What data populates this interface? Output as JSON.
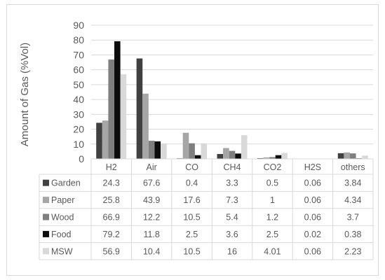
{
  "chart_data": {
    "type": "bar",
    "ylabel": "Amount of Gas (%Vol)",
    "ylim": [
      0,
      90
    ],
    "yticks": [
      0,
      10,
      20,
      30,
      40,
      50,
      60,
      70,
      80,
      90
    ],
    "grid": true,
    "legend": "data-table",
    "categories": [
      "H2",
      "Air",
      "CO",
      "CH4",
      "CO2",
      "H2S",
      "others"
    ],
    "series": [
      {
        "name": "Garden",
        "color": "#404040",
        "values": [
          24.3,
          67.6,
          0.4,
          3.3,
          0.5,
          0.06,
          3.84
        ],
        "labels": [
          "24.3",
          "67.6",
          "0.4",
          "3.3",
          "0.5",
          "0.06",
          "3.84"
        ]
      },
      {
        "name": "Paper",
        "color": "#a6a6a6",
        "values": [
          25.8,
          43.9,
          17.6,
          7.3,
          1,
          0.06,
          4.34
        ],
        "labels": [
          "25.8",
          "43.9",
          "17.6",
          "7.3",
          "1",
          "0.06",
          "4.34"
        ]
      },
      {
        "name": "Wood",
        "color": "#7f7f7f",
        "values": [
          66.9,
          12.2,
          10.5,
          5.4,
          1.2,
          0.06,
          3.7
        ],
        "labels": [
          "66.9",
          "12.2",
          "10.5",
          "5.4",
          "1.2",
          "0.06",
          "3.7"
        ]
      },
      {
        "name": "Food",
        "color": "#0d0d0d",
        "values": [
          79.2,
          11.8,
          2.5,
          3.6,
          2.5,
          0.02,
          0.38
        ],
        "labels": [
          "79.2",
          "11.8",
          "2.5",
          "3.6",
          "2.5",
          "0.02",
          "0.38"
        ]
      },
      {
        "name": "MSW",
        "color": "#d9d9d9",
        "values": [
          56.9,
          10.4,
          10.5,
          16,
          4.01,
          0.06,
          2.23
        ],
        "labels": [
          "56.9",
          "10.4",
          "10.5",
          "16",
          "4.01",
          "0.06",
          "2.23"
        ]
      }
    ]
  }
}
